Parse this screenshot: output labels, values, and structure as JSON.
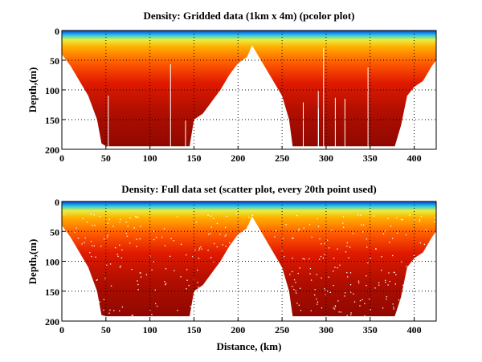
{
  "chart_data": [
    {
      "type": "heatmap",
      "subtype": "pcolor section",
      "title": "Density: Gridded data (1km x 4m) (pcolor plot)",
      "xlabel": "",
      "ylabel": "Depth,(m)",
      "xlim": [
        0,
        425
      ],
      "ylim": [
        200,
        0
      ],
      "xticks": [
        "0",
        "50",
        "100",
        "150",
        "200",
        "250",
        "300",
        "350",
        "400"
      ],
      "yticks": [
        "0",
        "50",
        "100",
        "150",
        "200"
      ],
      "grid": true,
      "colormap": "jet",
      "bottom_profile_km_m": [
        [
          0,
          40
        ],
        [
          10,
          60
        ],
        [
          20,
          85
        ],
        [
          30,
          110
        ],
        [
          40,
          150
        ],
        [
          45,
          190
        ],
        [
          50,
          195
        ],
        [
          100,
          195
        ],
        [
          145,
          195
        ],
        [
          150,
          150
        ],
        [
          160,
          140
        ],
        [
          170,
          120
        ],
        [
          180,
          100
        ],
        [
          190,
          75
        ],
        [
          200,
          55
        ],
        [
          210,
          45
        ],
        [
          216,
          25
        ],
        [
          222,
          40
        ],
        [
          230,
          60
        ],
        [
          240,
          85
        ],
        [
          250,
          110
        ],
        [
          258,
          150
        ],
        [
          262,
          195
        ],
        [
          300,
          195
        ],
        [
          350,
          195
        ],
        [
          378,
          195
        ],
        [
          385,
          160
        ],
        [
          392,
          110
        ],
        [
          400,
          95
        ],
        [
          410,
          85
        ],
        [
          420,
          60
        ],
        [
          425,
          50
        ]
      ]
    },
    {
      "type": "scatter",
      "title": "Density: Full data set (scatter plot, every 20th point used)",
      "xlabel": "Distance, (km)",
      "ylabel": "Depth,(m)",
      "xlim": [
        0,
        425
      ],
      "ylim": [
        200,
        0
      ],
      "xticks": [
        "0",
        "50",
        "100",
        "150",
        "200",
        "250",
        "300",
        "350",
        "400"
      ],
      "yticks": [
        "0",
        "50",
        "100",
        "150",
        "200"
      ],
      "grid": true,
      "colormap": "jet",
      "bottom_profile_km_m": [
        [
          0,
          40
        ],
        [
          10,
          60
        ],
        [
          20,
          85
        ],
        [
          30,
          110
        ],
        [
          40,
          150
        ],
        [
          45,
          190
        ],
        [
          50,
          192
        ],
        [
          100,
          192
        ],
        [
          145,
          192
        ],
        [
          150,
          150
        ],
        [
          160,
          140
        ],
        [
          170,
          120
        ],
        [
          180,
          100
        ],
        [
          190,
          75
        ],
        [
          200,
          55
        ],
        [
          210,
          45
        ],
        [
          216,
          25
        ],
        [
          222,
          40
        ],
        [
          230,
          60
        ],
        [
          240,
          85
        ],
        [
          250,
          110
        ],
        [
          258,
          150
        ],
        [
          262,
          192
        ],
        [
          300,
          192
        ],
        [
          350,
          192
        ],
        [
          378,
          192
        ],
        [
          385,
          160
        ],
        [
          392,
          110
        ],
        [
          400,
          95
        ],
        [
          410,
          85
        ],
        [
          420,
          60
        ],
        [
          425,
          50
        ]
      ]
    }
  ]
}
